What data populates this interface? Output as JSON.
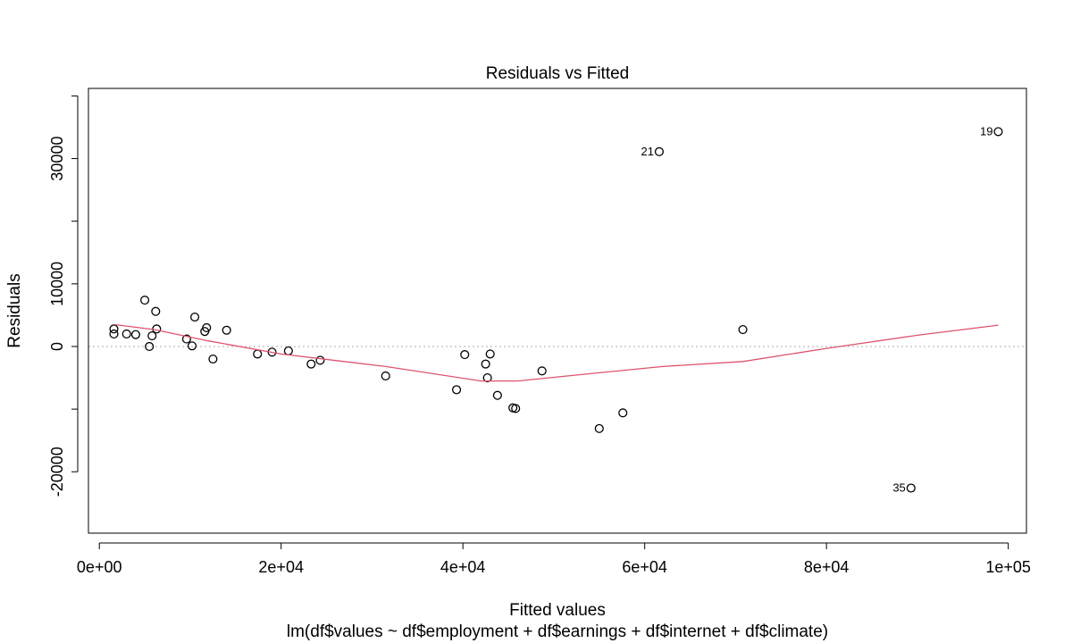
{
  "chart_data": {
    "type": "scatter",
    "title": "Residuals vs Fitted",
    "xlabel": "Fitted values",
    "subtitle": "lm(df$values ~ df$employment + df$earnings + df$internet + df$climate)",
    "ylabel": "Residuals",
    "xlim": [
      -1200,
      102000
    ],
    "ylim": [
      -29800,
      41200
    ],
    "x_ticks": [
      0,
      20000,
      40000,
      60000,
      80000,
      100000
    ],
    "x_tick_labels": [
      "0e+00",
      "2e+04",
      "4e+04",
      "6e+04",
      "8e+04",
      "1e+05"
    ],
    "y_ticks": [
      -20000,
      -10000,
      0,
      10000,
      20000,
      30000,
      40000
    ],
    "y_tick_labels": [
      "-20000",
      "",
      "0",
      "10000",
      "",
      "30000",
      ""
    ],
    "reference_line_y": 0,
    "points": [
      {
        "x": 1600,
        "y": 2000
      },
      {
        "x": 1600,
        "y": 2800
      },
      {
        "x": 3000,
        "y": 2000
      },
      {
        "x": 4000,
        "y": 1900
      },
      {
        "x": 5000,
        "y": 7400
      },
      {
        "x": 5500,
        "y": 0
      },
      {
        "x": 5800,
        "y": 1700
      },
      {
        "x": 6200,
        "y": 5600
      },
      {
        "x": 6300,
        "y": 2800
      },
      {
        "x": 9600,
        "y": 1200
      },
      {
        "x": 10200,
        "y": 100
      },
      {
        "x": 10500,
        "y": 4700
      },
      {
        "x": 11600,
        "y": 2400
      },
      {
        "x": 11800,
        "y": 3000
      },
      {
        "x": 12500,
        "y": -2000
      },
      {
        "x": 14000,
        "y": 2600
      },
      {
        "x": 17400,
        "y": -1200
      },
      {
        "x": 19000,
        "y": -900
      },
      {
        "x": 20800,
        "y": -700
      },
      {
        "x": 23300,
        "y": -2800
      },
      {
        "x": 24300,
        "y": -2200
      },
      {
        "x": 31500,
        "y": -4700
      },
      {
        "x": 39300,
        "y": -6900
      },
      {
        "x": 40200,
        "y": -1300
      },
      {
        "x": 42500,
        "y": -2800
      },
      {
        "x": 42700,
        "y": -5000
      },
      {
        "x": 43000,
        "y": -1200
      },
      {
        "x": 43800,
        "y": -7800
      },
      {
        "x": 45500,
        "y": -9800
      },
      {
        "x": 45800,
        "y": -9900
      },
      {
        "x": 48700,
        "y": -3900
      },
      {
        "x": 55000,
        "y": -13100
      },
      {
        "x": 57600,
        "y": -10600
      },
      {
        "x": 61600,
        "y": 31100,
        "label": "21"
      },
      {
        "x": 70800,
        "y": 2700
      },
      {
        "x": 89300,
        "y": -22600,
        "label": "35"
      },
      {
        "x": 98900,
        "y": 34300,
        "label": "19"
      }
    ],
    "smooth_line": [
      {
        "x": 1600,
        "y": 3500
      },
      {
        "x": 6000,
        "y": 2700
      },
      {
        "x": 12000,
        "y": 900
      },
      {
        "x": 20000,
        "y": -1200
      },
      {
        "x": 31500,
        "y": -3200
      },
      {
        "x": 42000,
        "y": -5500
      },
      {
        "x": 46000,
        "y": -5500
      },
      {
        "x": 55000,
        "y": -4200
      },
      {
        "x": 62000,
        "y": -3200
      },
      {
        "x": 70800,
        "y": -2400
      },
      {
        "x": 80000,
        "y": -300
      },
      {
        "x": 90000,
        "y": 1800
      },
      {
        "x": 98900,
        "y": 3400
      }
    ]
  }
}
